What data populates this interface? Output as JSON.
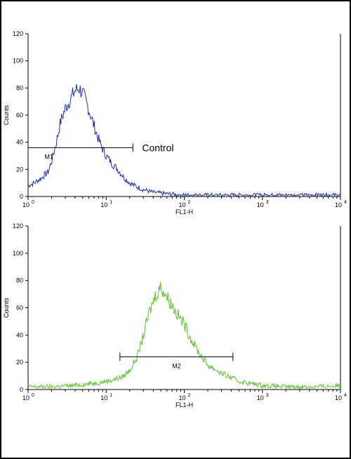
{
  "colors": {
    "top_series": "#1f2fa8",
    "bottom_series": "#5cc22a"
  },
  "chart_data": [
    {
      "type": "line",
      "xscale": "log",
      "xlim": [
        1,
        10000
      ],
      "ylim": [
        0,
        120
      ],
      "xlabel": "FL1-H",
      "ylabel": "Counts",
      "x_tick_labels": [
        "10",
        "10",
        "10",
        "10",
        "10"
      ],
      "x_tick_exponents": [
        "0",
        "1",
        "2",
        "3",
        "4"
      ],
      "y_ticks": [
        "0",
        "20",
        "40",
        "60",
        "80",
        "100",
        "120"
      ],
      "series": [
        {
          "x": [
            1,
            1.2,
            1.5,
            1.8,
            2.0,
            2.3,
            2.6,
            3.0,
            3.5,
            4.0,
            4.5,
            5.0,
            5.5,
            6.0,
            7.0,
            8.0,
            9.0,
            10,
            12,
            14,
            17,
            20,
            25,
            30,
            40,
            60,
            100,
            200,
            500,
            1000,
            3000,
            10000
          ],
          "y": [
            8,
            10,
            14,
            18,
            26,
            40,
            55,
            65,
            72,
            78,
            80,
            76,
            70,
            64,
            52,
            42,
            35,
            30,
            24,
            20,
            14,
            10,
            7,
            5,
            3,
            2,
            1,
            1,
            1,
            1,
            1,
            1
          ]
        }
      ],
      "markers": [
        {
          "label": "M1",
          "x_start": 1,
          "x_end": 22,
          "y": 36
        }
      ],
      "annotation": "Control"
    },
    {
      "type": "line",
      "xscale": "log",
      "xlim": [
        1,
        10000
      ],
      "ylim": [
        0,
        120
      ],
      "xlabel": "FL1-H",
      "ylabel": "Counts",
      "x_tick_labels": [
        "10",
        "10",
        "10",
        "10",
        "10"
      ],
      "x_tick_exponents": [
        "0",
        "1",
        "2",
        "3",
        "4"
      ],
      "y_ticks": [
        "0",
        "20",
        "40",
        "60",
        "80",
        "100",
        "120"
      ],
      "series": [
        {
          "x": [
            1,
            2,
            4,
            8,
            12,
            16,
            20,
            25,
            30,
            35,
            40,
            45,
            50,
            55,
            60,
            70,
            80,
            100,
            120,
            150,
            200,
            300,
            500,
            1000,
            2000,
            5000,
            10000
          ],
          "y": [
            2,
            2,
            3,
            5,
            7,
            9,
            14,
            24,
            40,
            55,
            65,
            72,
            75,
            72,
            68,
            62,
            56,
            48,
            38,
            28,
            18,
            12,
            6,
            3,
            2,
            2,
            3
          ]
        }
      ],
      "markers": [
        {
          "label": "M2",
          "x_start": 15,
          "x_end": 420,
          "y": 24
        }
      ]
    }
  ]
}
